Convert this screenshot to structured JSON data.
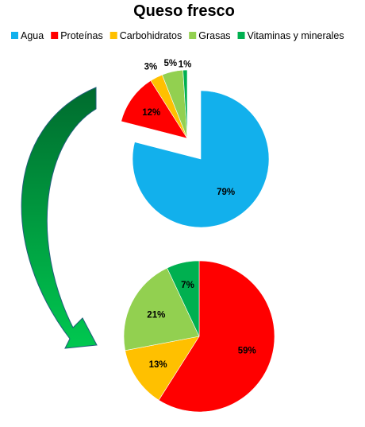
{
  "chart_data": [
    {
      "type": "pie",
      "title": "Queso fresco",
      "categories": [
        "Agua",
        "Proteínas",
        "Carbohidratos",
        "Grasas",
        "Vitaminas y minerales"
      ],
      "values": [
        79,
        12,
        3,
        5,
        1
      ],
      "labels": [
        "79%",
        "12%",
        "3%",
        "5%",
        "1%"
      ],
      "exploded": [
        "Proteínas",
        "Carbohidratos",
        "Grasas",
        "Vitaminas y minerales"
      ],
      "legend_position": "top"
    },
    {
      "type": "pie",
      "categories": [
        "Proteínas",
        "Carbohidratos",
        "Grasas",
        "Vitaminas y minerales"
      ],
      "values": [
        59,
        13,
        21,
        7
      ],
      "labels": [
        "59%",
        "13%",
        "21%",
        "7%"
      ]
    }
  ],
  "colors": {
    "Agua": "#12B0EC",
    "Proteínas": "#FF0000",
    "Carbohidratos": "#FFC000",
    "Grasas": "#92D050",
    "Vitaminas y minerales": "#00B050"
  },
  "arrow": {
    "icon": "curved-arrow-icon",
    "gradient_from": "#006B2E",
    "gradient_to": "#00C850"
  }
}
